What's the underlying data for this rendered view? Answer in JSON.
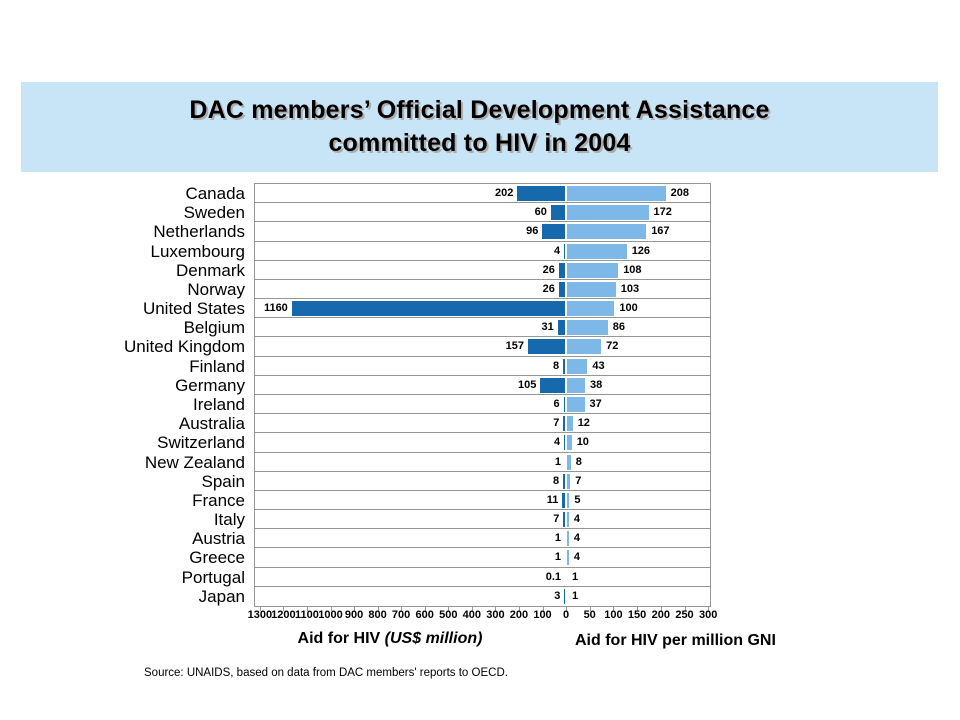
{
  "title": {
    "line1": "DAC members’ Official Development Assistance",
    "line2": "committed to HIV in 2004"
  },
  "chart_data": {
    "type": "bar",
    "variant": "diverging-horizontal",
    "title": "DAC members’ Official Development Assistance committed to HIV in 2004",
    "categories": [
      "Canada",
      "Sweden",
      "Netherlands",
      "Luxembourg",
      "Denmark",
      "Norway",
      "United States",
      "Belgium",
      "United Kingdom",
      "Finland",
      "Germany",
      "Ireland",
      "Australia",
      "Switzerland",
      "New Zealand",
      "Spain",
      "France",
      "Italy",
      "Austria",
      "Greece",
      "Portugal",
      "Japan"
    ],
    "series": [
      {
        "name": "Aid for HIV (US$ million)",
        "side": "left",
        "color": "#1769AD",
        "values": [
          202,
          60,
          96,
          4,
          26,
          26,
          1160,
          31,
          157,
          8,
          105,
          6,
          7,
          4,
          1,
          8,
          11,
          7,
          1,
          1,
          0.1,
          3
        ]
      },
      {
        "name": "Aid for HIV per million GNI",
        "side": "right",
        "color": "#7EB8E8",
        "values": [
          208,
          172,
          167,
          126,
          108,
          103,
          100,
          86,
          72,
          43,
          38,
          37,
          12,
          10,
          8,
          7,
          5,
          4,
          4,
          4,
          1,
          1
        ]
      }
    ],
    "left_axis": {
      "min": 0,
      "max": 1300,
      "ticks": [
        1300,
        1200,
        1100,
        1000,
        900,
        800,
        700,
        600,
        500,
        400,
        300,
        200,
        100
      ]
    },
    "zero_label": "0",
    "right_axis": {
      "min": 0,
      "max": 300,
      "ticks": [
        50,
        100,
        150,
        200,
        250,
        300
      ]
    },
    "grid": false,
    "legend": false
  },
  "axis_titles": {
    "left_normal": "Aid for HIV ",
    "left_italic": "(US$ million)",
    "right": "Aid for HIV per million GNI"
  },
  "source": "Source: UNAIDS, based on data from DAC members' reports to OECD.",
  "colors": {
    "banner_bg": "#C8E5F8",
    "bar_left": "#1769AD",
    "bar_right": "#7EB8E8",
    "row_border": "#969696"
  }
}
